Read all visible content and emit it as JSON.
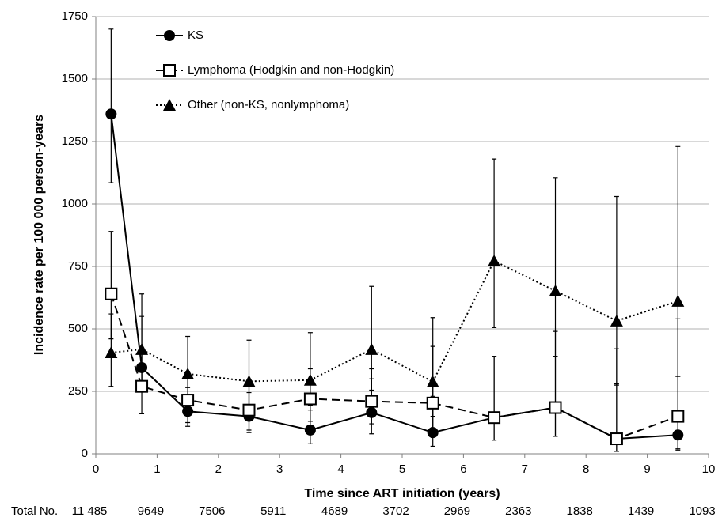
{
  "chart_data": {
    "type": "line",
    "xlabel": "Time since ART initiation  (years)",
    "ylabel": "Incidence rate per 100 000 person-years",
    "x": [
      0.25,
      0.75,
      1.5,
      2.5,
      3.5,
      4.5,
      5.5,
      6.5,
      7.5,
      8.5,
      9.5
    ],
    "xlim": [
      0,
      10
    ],
    "xticks": [
      0,
      1,
      2,
      3,
      4,
      5,
      6,
      7,
      8,
      9,
      10
    ],
    "ylim": [
      0,
      1750
    ],
    "yticks": [
      0,
      250,
      500,
      750,
      1000,
      1250,
      1500,
      1750
    ],
    "grid": true,
    "legend": "upper left",
    "series": [
      {
        "name": "KS",
        "color": "#000000",
        "marker": "circle",
        "dash": "solid",
        "values": [
          1360,
          345,
          170,
          150,
          95,
          165,
          85,
          145,
          185,
          60,
          75
        ],
        "error_low": [
          1085,
          250,
          110,
          85,
          40,
          80,
          30,
          55,
          70,
          10,
          15
        ],
        "error_high": [
          1700,
          550,
          265,
          245,
          195,
          300,
          230,
          390,
          390,
          420,
          310
        ]
      },
      {
        "name": "Lymphoma (Hodgkin and non-Hodgkin)",
        "color": "#000000",
        "marker": "square",
        "dash": "dashed",
        "values": [
          640,
          270,
          215,
          175,
          220,
          210,
          203,
          145,
          185,
          60,
          150
        ],
        "error_low": [
          460,
          160,
          125,
          95,
          130,
          120,
          90,
          55,
          70,
          10,
          20
        ],
        "error_high": [
          890,
          340,
          330,
          280,
          340,
          340,
          430,
          390,
          490,
          280,
          540
        ]
      },
      {
        "name": "Other (non-KS, nonlymphoma)",
        "color": "#000000",
        "marker": "triangle",
        "dash": "dotted",
        "values": [
          405,
          418,
          320,
          290,
          295,
          418,
          288,
          772,
          652,
          532,
          611
        ],
        "error_low": [
          270,
          270,
          215,
          190,
          175,
          255,
          150,
          505,
          390,
          275,
          310
        ],
        "error_high": [
          560,
          640,
          470,
          455,
          485,
          670,
          545,
          1180,
          1105,
          1030,
          1230
        ]
      }
    ],
    "at_risk": {
      "label": "Total No.",
      "x": [
        0,
        1,
        2,
        3,
        4,
        5,
        6,
        7,
        8,
        9,
        10
      ],
      "values": [
        11485,
        9649,
        7506,
        5911,
        4689,
        3702,
        2969,
        2363,
        1838,
        1439,
        1093
      ],
      "value_labels": [
        "11 485",
        "9649",
        "7506",
        "5911",
        "4689",
        "3702",
        "2969",
        "2363",
        "1838",
        "1439",
        "1093"
      ]
    }
  }
}
